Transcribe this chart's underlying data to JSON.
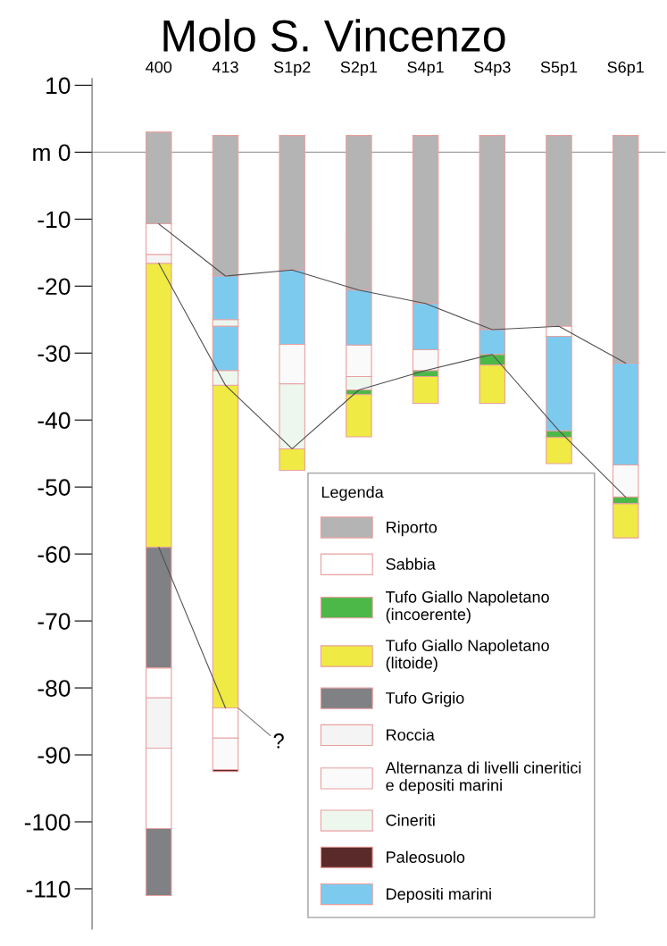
{
  "chart_data": {
    "type": "bar",
    "title": "Molo S. Vincenzo",
    "categories": [
      "400",
      "413",
      "S1p2",
      "S2p1",
      "S4p1",
      "S4p3",
      "S5p1",
      "S6p1"
    ],
    "ylim": [
      -116,
      11
    ],
    "yticks": [
      10,
      {
        "value": 0,
        "label": "m 0"
      },
      -10,
      -20,
      -30,
      -40,
      -50,
      -60,
      -70,
      -80,
      -90,
      -100,
      -110
    ],
    "grid": false,
    "legend": "bottom right",
    "legend_title": "Legenda",
    "ref_lines": [
      {
        "axis": "y",
        "value": 0,
        "color": "#a0a0a0"
      }
    ],
    "annotations": [
      {
        "text": "?",
        "x": "413",
        "y": -83
      }
    ],
    "series": [
      {
        "type": "line",
        "color": "#505050",
        "values": [
          -10.7,
          -18.5,
          -17.6,
          -20.6,
          -22.6,
          -26.5,
          -26,
          -31.5
        ]
      },
      {
        "type": "line",
        "color": "#505050",
        "values": [
          -16.6,
          -34.8,
          -44.3,
          -35.5,
          -32.6,
          -30.2,
          -41.6,
          -51.5
        ]
      },
      {
        "type": "line",
        "color": "#505050",
        "values": [
          -59,
          -83,
          null,
          null,
          null,
          null,
          null,
          null
        ]
      },
      {
        "name": "Riporto",
        "color": "#b4b4b4",
        "base": [
          -10.7,
          -18.5,
          -17.6,
          -20.6,
          -22.6,
          -26.5,
          -26,
          -31.5
        ],
        "values": [
          13.7,
          21,
          20.1,
          23.1,
          25.1,
          29,
          28.5,
          34
        ]
      },
      {
        "name": "Sabbia",
        "color": "#ffffff",
        "base": [
          -15.3,
          -87.5,
          null,
          null,
          null,
          null,
          -27.5,
          null
        ],
        "values": [
          4.6,
          4.5,
          null,
          null,
          null,
          null,
          1.5,
          null
        ]
      },
      {
        "color": "#ffffff",
        "base": [
          -81.5,
          null,
          null,
          null,
          null,
          null,
          null,
          null
        ],
        "values": [
          4.5,
          null,
          null,
          null,
          null,
          null,
          null,
          null
        ]
      },
      {
        "color": "#ffffff",
        "base": [
          -101,
          null,
          null,
          null,
          null,
          null,
          null,
          null
        ],
        "values": [
          12,
          null,
          null,
          null,
          null,
          null,
          null,
          null
        ]
      },
      {
        "name": "Tufo Giallo Napoletano\n(incoerente)",
        "color": "#4cb848",
        "base": [
          null,
          null,
          null,
          -36.2,
          -33.5,
          -31.8,
          -42.6,
          -52.5
        ],
        "values": [
          null,
          null,
          null,
          0.7,
          0.9,
          1.6,
          1.0,
          1.0
        ]
      },
      {
        "name": "Tufo Giallo Napoletano\n(litoide)",
        "color": "#f0ea44",
        "base": [
          -59,
          -83,
          -47.5,
          -42.5,
          -37.5,
          -37.5,
          -46.5,
          -57.6
        ],
        "values": [
          42.4,
          48.2,
          3.2,
          6.3,
          4,
          5.7,
          3.9,
          5.1
        ]
      },
      {
        "name": "Tufo Grigio",
        "color": "#7f8184",
        "base": [
          -77,
          null,
          null,
          null,
          null,
          null,
          null,
          null
        ],
        "values": [
          18,
          null,
          null,
          null,
          null,
          null,
          null,
          null
        ]
      },
      {
        "color": "#7f8184",
        "base": [
          -111,
          null,
          null,
          null,
          null,
          null,
          null,
          null
        ],
        "values": [
          10,
          null,
          null,
          null,
          null,
          null,
          null,
          null
        ]
      },
      {
        "name": "Roccia",
        "color": "#f4f4f4",
        "base": [
          -16.6,
          null,
          null,
          null,
          null,
          null,
          null,
          null
        ],
        "values": [
          1.3,
          null,
          null,
          null,
          null,
          null,
          null,
          null
        ]
      },
      {
        "color": "#f4f4f4",
        "base": [
          -89,
          null,
          null,
          null,
          null,
          null,
          null,
          null
        ],
        "values": [
          7.5,
          null,
          null,
          null,
          null,
          null,
          null,
          null
        ]
      },
      {
        "name": "Alternanza di livelli cineritici\ne depositi marini",
        "color": "#fafafa",
        "base": [
          null,
          -92.2,
          -34.6,
          -33.5,
          -32.6,
          null,
          null,
          -51.5
        ],
        "values": [
          null,
          4.7,
          5.9,
          4.7,
          3.1,
          null,
          null,
          4.8
        ]
      },
      {
        "name": "Cineriti",
        "color": "#eef7ee",
        "base": [
          null,
          -26,
          -44.3,
          -35.5,
          null,
          null,
          null,
          null
        ],
        "values": [
          null,
          1,
          9.7,
          2,
          null,
          null,
          null,
          null
        ]
      },
      {
        "color": "#eef7ee",
        "base": [
          null,
          -34.8,
          null,
          null,
          null,
          null,
          null,
          null
        ],
        "values": [
          null,
          2.2,
          null,
          null,
          null,
          null,
          null,
          null
        ]
      },
      {
        "name": "Paleosuolo",
        "color": "#5a2a2a",
        "base": [
          null,
          -92.5,
          null,
          null,
          null,
          null,
          null,
          null
        ],
        "values": [
          null,
          0.3,
          null,
          null,
          null,
          null,
          null,
          null
        ]
      },
      {
        "name": "Depositi marini",
        "color": "#7ccbee",
        "base": [
          null,
          -25,
          -28.7,
          -28.8,
          -29.5,
          -30.2,
          -41.6,
          -46.7
        ],
        "values": [
          null,
          6.5,
          11.1,
          8.2,
          6.9,
          3.7,
          14.1,
          15.2
        ]
      },
      {
        "color": "#7ccbee",
        "base": [
          null,
          -32.6,
          null,
          null,
          null,
          null,
          null,
          null
        ],
        "values": [
          null,
          6.6,
          null,
          null,
          null,
          null,
          null,
          null
        ]
      }
    ]
  }
}
